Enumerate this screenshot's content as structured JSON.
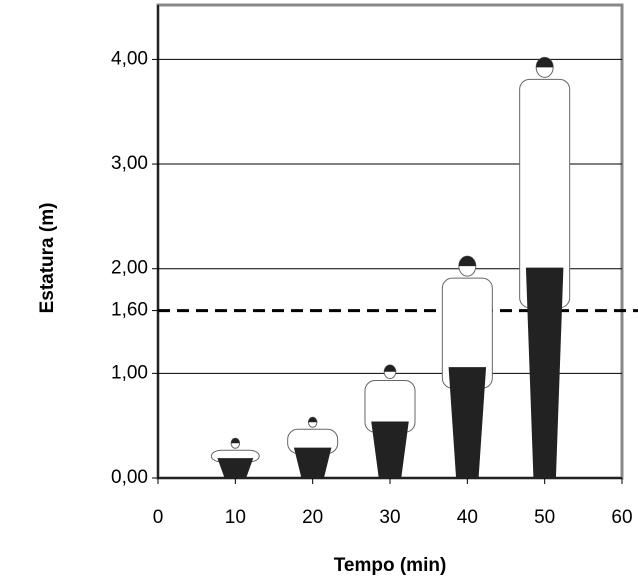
{
  "chart_data": {
    "type": "pictogram",
    "x_label": "Tempo (min)",
    "y_label": "Estatura (m)",
    "x": [
      10,
      20,
      30,
      40,
      50
    ],
    "values": [
      0.38,
      0.58,
      1.08,
      2.12,
      4.02
    ],
    "xlim": [
      0,
      60
    ],
    "xticks": [
      0,
      10,
      20,
      30,
      40,
      50,
      60
    ],
    "ylim": [
      0,
      4.52
    ],
    "yticks": [
      {
        "value": 0,
        "label": "0,00"
      },
      {
        "value": 1,
        "label": "1,00"
      },
      {
        "value": 1.6,
        "label": "1,60"
      },
      {
        "value": 2,
        "label": "2,00"
      },
      {
        "value": 3,
        "label": "3,00"
      },
      {
        "value": 4,
        "label": "4,00"
      }
    ],
    "reference_line": 1.6,
    "grid": true
  }
}
